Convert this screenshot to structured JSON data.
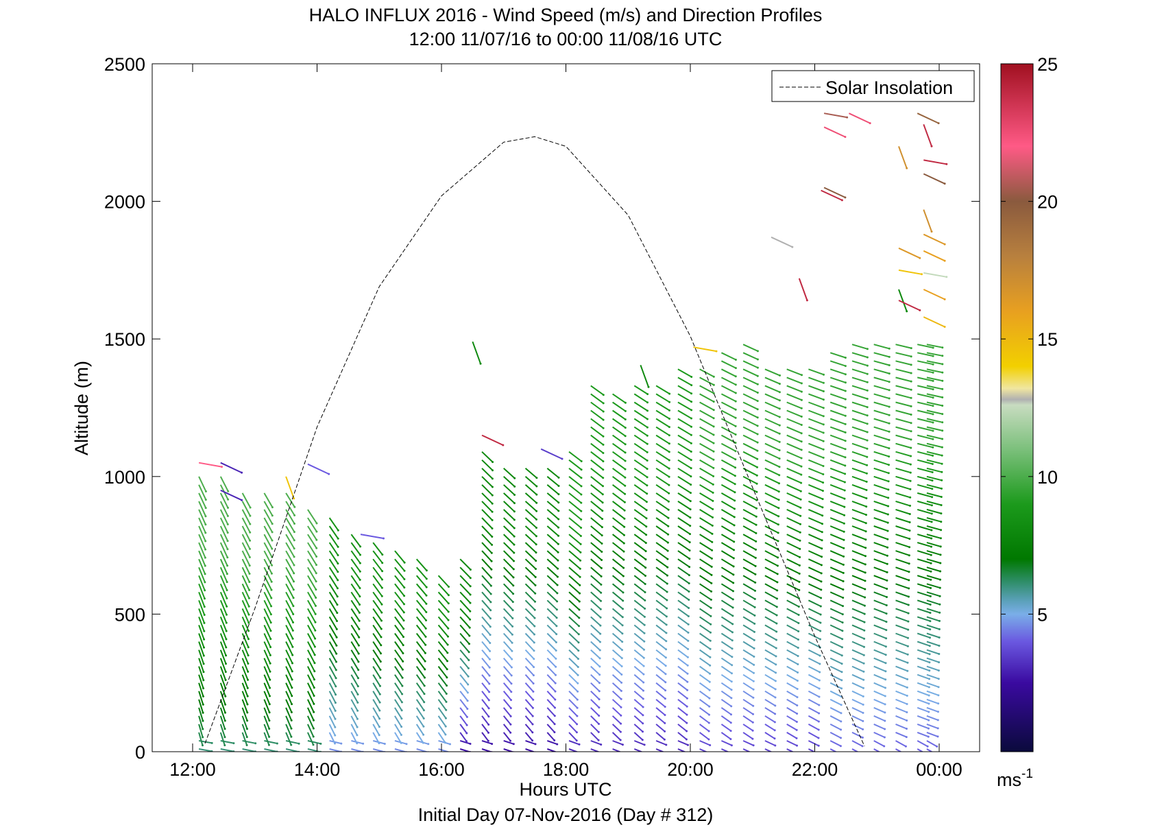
{
  "chart_data": {
    "type": "vector_field",
    "title": "HALO INFLUX 2016 - Wind Speed (m/s) and Direction Profiles",
    "subtitle": "12:00 11/07/16 to 00:00 11/08/16  UTC",
    "xlabel": "Hours UTC",
    "ylabel": "Altitude (m)",
    "footer": "Initial Day 07-Nov-2016 (Day # 312)",
    "x_ticks": [
      "12:00",
      "14:00",
      "16:00",
      "18:00",
      "20:00",
      "22:00",
      "00:00"
    ],
    "x_tick_hours": [
      12,
      14,
      16,
      18,
      20,
      22,
      24
    ],
    "xlim": [
      11.35,
      24.65
    ],
    "y_ticks": [
      "0",
      "500",
      "1000",
      "1500",
      "2000",
      "2500"
    ],
    "y_tick_values": [
      0,
      500,
      1000,
      1500,
      2000,
      2500
    ],
    "ylim": [
      0,
      2500
    ],
    "legend": {
      "label": "Solar Insolation",
      "position": "top-right",
      "line_style": "dashed",
      "color": "#000000"
    },
    "insolation_curve": {
      "hours": [
        12.2,
        13.0,
        14.0,
        15.0,
        16.0,
        17.0,
        17.5,
        18.0,
        19.0,
        20.0,
        21.0,
        22.0,
        22.8
      ],
      "altitude": [
        30,
        520,
        1180,
        1690,
        2020,
        2215,
        2235,
        2200,
        1950,
        1510,
        960,
        420,
        20
      ]
    },
    "colorbar": {
      "unit_label": "ms",
      "unit_exponent": "-1",
      "ticks": [
        "5",
        "10",
        "15",
        "20",
        "25"
      ],
      "tick_values": [
        5,
        10,
        15,
        20,
        25
      ],
      "range": [
        0,
        25
      ],
      "color_stops": [
        {
          "v": 0,
          "c": "#0a0a3c"
        },
        {
          "v": 2.5,
          "c": "#3a0aa0"
        },
        {
          "v": 4,
          "c": "#6a58e0"
        },
        {
          "v": 5,
          "c": "#7aaee8"
        },
        {
          "v": 5.5,
          "c": "#5aa0b8"
        },
        {
          "v": 6.2,
          "c": "#2d8d66"
        },
        {
          "v": 7,
          "c": "#007800"
        },
        {
          "v": 9,
          "c": "#1c9a1c"
        },
        {
          "v": 11,
          "c": "#7cc07c"
        },
        {
          "v": 12.6,
          "c": "#c8dcc0"
        },
        {
          "v": 12.8,
          "c": "#b0b0b0"
        },
        {
          "v": 13.2,
          "c": "#f0e6a0"
        },
        {
          "v": 14,
          "c": "#f2d000"
        },
        {
          "v": 16,
          "c": "#e8a020"
        },
        {
          "v": 18,
          "c": "#b8803e"
        },
        {
          "v": 20,
          "c": "#8a5a3e"
        },
        {
          "v": 22,
          "c": "#ff5a86"
        },
        {
          "v": 25,
          "c": "#a01020"
        }
      ]
    },
    "profile_hours": [
      12.1,
      12.45,
      12.8,
      13.15,
      13.5,
      13.85,
      14.2,
      14.55,
      14.9,
      15.25,
      15.6,
      15.95,
      16.3,
      16.65,
      17.0,
      17.35,
      17.7,
      18.05,
      18.4,
      18.75,
      19.1,
      19.45,
      19.8,
      20.15,
      20.5,
      20.85,
      21.2,
      21.55,
      21.9,
      22.25,
      22.6,
      22.95,
      23.3,
      23.65,
      23.8
    ],
    "profile_tops_m": [
      1000,
      1000,
      950,
      950,
      950,
      900,
      870,
      800,
      780,
      740,
      700,
      660,
      700,
      1100,
      1050,
      1050,
      1050,
      1100,
      1350,
      1320,
      1330,
      1350,
      1400,
      1400,
      1450,
      1480,
      1400,
      1400,
      1400,
      1450,
      1480,
      1500,
      1500,
      1500,
      1500
    ],
    "barb_altitude_spacing_m": 30,
    "wind_regimes": [
      {
        "hours": [
          12.0,
          14.0
        ],
        "low_speed_ms": 6,
        "high_speed_ms": 10,
        "direction": "from south-southeast"
      },
      {
        "hours": [
          14.0,
          16.0
        ],
        "low_speed_ms": 4.5,
        "high_speed_ms": 8.5,
        "direction": "from southeast"
      },
      {
        "hours": [
          16.0,
          18.0
        ],
        "low_speed_ms": 2.5,
        "high_speed_ms": 8,
        "direction": "from south"
      },
      {
        "hours": [
          18.0,
          20.0
        ],
        "low_speed_ms": 3,
        "high_speed_ms": 9,
        "direction": "from south-southwest"
      },
      {
        "hours": [
          20.0,
          22.0
        ],
        "low_speed_ms": 3.5,
        "high_speed_ms": 9.5,
        "direction": "from southwest"
      },
      {
        "hours": [
          22.0,
          24.0
        ],
        "low_speed_ms": 4,
        "high_speed_ms": 9.5,
        "direction": "from west-southwest"
      }
    ],
    "isolated_barbs": [
      {
        "hour": 12.1,
        "alt": 1050,
        "speed": 22
      },
      {
        "hour": 12.45,
        "alt": 1050,
        "speed": 3
      },
      {
        "hour": 12.45,
        "alt": 950,
        "speed": 3
      },
      {
        "hour": 13.5,
        "alt": 1000,
        "speed": 14.5
      },
      {
        "hour": 13.85,
        "alt": 1045,
        "speed": 4
      },
      {
        "hour": 14.7,
        "alt": 790,
        "speed": 4
      },
      {
        "hour": 16.5,
        "alt": 1490,
        "speed": 8
      },
      {
        "hour": 16.65,
        "alt": 1150,
        "speed": 24
      },
      {
        "hour": 17.6,
        "alt": 1100,
        "speed": 3.5
      },
      {
        "hour": 19.2,
        "alt": 1405,
        "speed": 8
      },
      {
        "hour": 20.05,
        "alt": 1470,
        "speed": 14.5
      },
      {
        "hour": 21.3,
        "alt": 1870,
        "speed": 12.8
      },
      {
        "hour": 21.75,
        "alt": 1720,
        "speed": 24
      },
      {
        "hour": 22.1,
        "alt": 2040,
        "speed": 24
      },
      {
        "hour": 22.15,
        "alt": 2050,
        "speed": 20
      },
      {
        "hour": 22.15,
        "alt": 2320,
        "speed": 20.5
      },
      {
        "hour": 22.15,
        "alt": 2270,
        "speed": 22.5
      },
      {
        "hour": 22.55,
        "alt": 2320,
        "speed": 22.5
      },
      {
        "hour": 23.35,
        "alt": 2200,
        "speed": 17
      },
      {
        "hour": 23.35,
        "alt": 1830,
        "speed": 16.5
      },
      {
        "hour": 23.35,
        "alt": 1750,
        "speed": 14.5
      },
      {
        "hour": 23.35,
        "alt": 1680,
        "speed": 8
      },
      {
        "hour": 23.35,
        "alt": 1640,
        "speed": 24
      },
      {
        "hour": 23.65,
        "alt": 2320,
        "speed": 19.5
      },
      {
        "hour": 23.75,
        "alt": 2280,
        "speed": 24
      },
      {
        "hour": 23.75,
        "alt": 2150,
        "speed": 24
      },
      {
        "hour": 23.75,
        "alt": 2100,
        "speed": 20
      },
      {
        "hour": 23.75,
        "alt": 1970,
        "speed": 17
      },
      {
        "hour": 23.75,
        "alt": 1880,
        "speed": 16.5
      },
      {
        "hour": 23.75,
        "alt": 1820,
        "speed": 16
      },
      {
        "hour": 23.75,
        "alt": 1740,
        "speed": 12.5
      },
      {
        "hour": 23.75,
        "alt": 1680,
        "speed": 16
      },
      {
        "hour": 23.75,
        "alt": 1580,
        "speed": 15
      }
    ],
    "grid": false
  }
}
